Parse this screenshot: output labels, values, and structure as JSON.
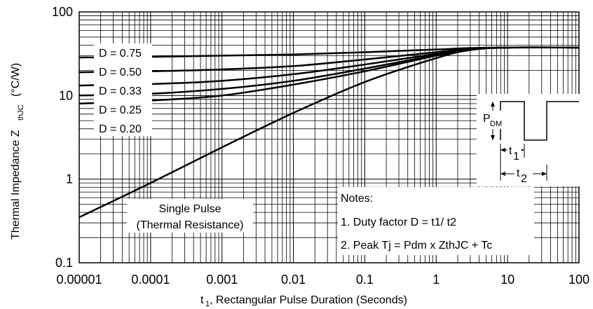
{
  "chart_data": {
    "type": "line",
    "title": "",
    "xscale": "log",
    "yscale": "log",
    "xlim": [
      1e-05,
      100
    ],
    "ylim": [
      0.1,
      100
    ],
    "grid": true,
    "xticks": [
      "0.00001",
      "0.0001",
      "0.001",
      "0.01",
      "0.1",
      "1",
      "10",
      "100"
    ],
    "yticks": [
      "0.1",
      "1",
      "10",
      "100"
    ],
    "xlabel": {
      "prefix": "t",
      "subscript": "1",
      "text": " , Rectangular Pulse Duration (Seconds)"
    },
    "ylabel": {
      "text": "Thermal Impedance Z",
      "subscript": "thJC",
      "unit": "(°C/W)"
    },
    "series": [
      {
        "name": "D = 0.75",
        "x": [
          1e-05,
          0.0001,
          0.001,
          0.01,
          0.1,
          1,
          3,
          10,
          100
        ],
        "y": [
          28.5,
          29,
          30,
          31,
          33,
          35.5,
          37,
          37.5,
          37.5
        ]
      },
      {
        "name": "D = 0.50",
        "x": [
          1e-05,
          0.0001,
          0.001,
          0.01,
          0.1,
          1,
          3,
          10,
          100
        ],
        "y": [
          19,
          19.5,
          20.5,
          22.5,
          27,
          33,
          36.5,
          37.5,
          37.5
        ]
      },
      {
        "name": "D = 0.33",
        "x": [
          1e-05,
          0.0001,
          0.001,
          0.01,
          0.1,
          1,
          3,
          10,
          100
        ],
        "y": [
          13.2,
          13.7,
          15,
          18,
          23.5,
          31.5,
          36,
          37.5,
          37.5
        ]
      },
      {
        "name": "D = 0.25",
        "x": [
          1e-05,
          0.0001,
          0.001,
          0.01,
          0.1,
          1,
          3,
          10,
          100
        ],
        "y": [
          10,
          10.5,
          12,
          15,
          21,
          30.5,
          35.5,
          37.5,
          37.5
        ]
      },
      {
        "name": "D = 0.20",
        "x": [
          1e-05,
          0.0001,
          0.001,
          0.01,
          0.1,
          1,
          3,
          10,
          100
        ],
        "y": [
          8,
          8.7,
          10,
          13.5,
          19.5,
          30,
          35.5,
          37.5,
          37.5
        ]
      },
      {
        "name": "Single Pulse (Thermal Resistance)",
        "x": [
          1e-05,
          0.0001,
          0.001,
          0.01,
          0.1,
          1,
          3,
          10,
          100
        ],
        "y": [
          0.35,
          0.9,
          2.4,
          6.2,
          14.5,
          28,
          35,
          37.5,
          37.5
        ]
      }
    ],
    "legend_labels": [
      "D = 0.75",
      "D = 0.50",
      "D = 0.33",
      "D = 0.25",
      "D = 0.20"
    ],
    "single_pulse_label": [
      "Single Pulse",
      "(Thermal Resistance)"
    ],
    "notes": {
      "title": "Notes:",
      "line1": "1. Duty factor D =  t1/ t2",
      "line2": "2. Peak Tj  = Pdm  x ZthJC  + Tc"
    },
    "inset": {
      "pdm": "P",
      "pdm_sub": "DM",
      "t1": "t",
      "t1_sub": "1",
      "t2": "t",
      "t2_sub": "2"
    }
  }
}
